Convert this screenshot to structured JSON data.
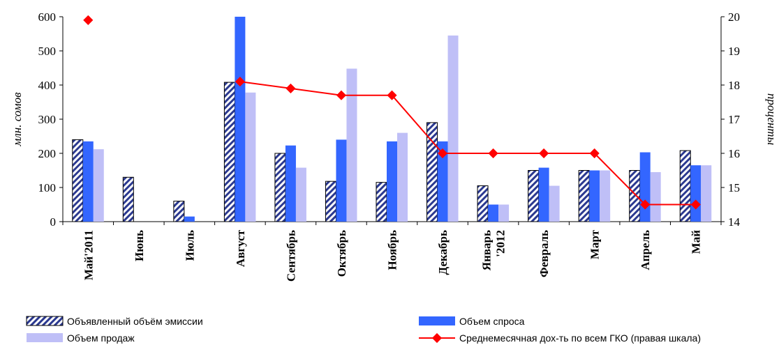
{
  "chart_data": {
    "type": "bar",
    "categories": [
      "Май'2011",
      "Июнь",
      "Июль",
      "Август",
      "Сентябрь",
      "Октябрь",
      "Ноябрь",
      "Декабрь",
      "Январь '2012",
      "Февраль",
      "Март",
      "Апрель",
      "Май"
    ],
    "series": [
      {
        "name": "Объявленный объём эмиссии",
        "type": "bar",
        "axis": "left",
        "color": "#2B3990",
        "values": [
          240,
          130,
          60,
          408,
          200,
          118,
          115,
          290,
          105,
          150,
          150,
          150,
          208
        ]
      },
      {
        "name": "Объем спроса",
        "type": "bar",
        "axis": "left",
        "color": "#3366FF",
        "values": [
          235,
          0,
          15,
          600,
          223,
          240,
          235,
          235,
          50,
          158,
          150,
          203,
          165
        ]
      },
      {
        "name": "Объем продаж",
        "type": "bar",
        "axis": "left",
        "color": "#BFBFF7",
        "values": [
          212,
          0,
          0,
          378,
          158,
          448,
          260,
          545,
          50,
          105,
          150,
          145,
          165
        ]
      },
      {
        "name": "Среднемесячная дох-ть по всем ГКО (правая шкала)",
        "type": "line",
        "axis": "right",
        "color": "#FF0000",
        "values": [
          19.9,
          null,
          null,
          18.1,
          17.9,
          17.7,
          17.7,
          16.0,
          16.0,
          16.0,
          16.0,
          14.5,
          14.5
        ]
      }
    ],
    "ylabel": "млн. сомов",
    "y2label": "проценты",
    "ylim": [
      0,
      600
    ],
    "y2lim": [
      14,
      20
    ],
    "yticks": [
      0,
      100,
      200,
      300,
      400,
      500,
      600
    ],
    "y2ticks": [
      14,
      15,
      16,
      17,
      18,
      19,
      20
    ],
    "grid": false,
    "legend_position": "bottom"
  }
}
